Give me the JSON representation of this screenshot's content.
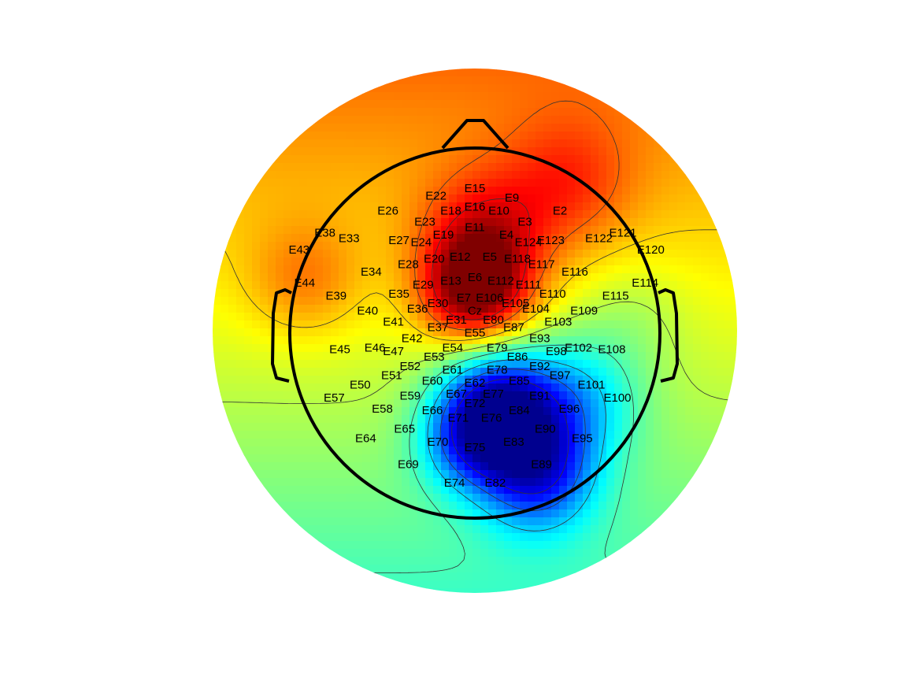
{
  "chart_data": {
    "type": "heatmap",
    "subtype": "topographic-scalp-map",
    "title": "",
    "colormap": "jet",
    "colormap_stops": [
      "#00008f",
      "#0000ff",
      "#00ffff",
      "#ffff00",
      "#ff0000",
      "#800000"
    ],
    "contours": true,
    "head_outline": true,
    "electrodes": [
      {
        "label": "E15",
        "x": 0.0,
        "y": 0.78
      },
      {
        "label": "E22",
        "x": -0.21,
        "y": 0.74
      },
      {
        "label": "E9",
        "x": 0.2,
        "y": 0.73
      },
      {
        "label": "E16",
        "x": 0.0,
        "y": 0.68
      },
      {
        "label": "E18",
        "x": -0.13,
        "y": 0.66
      },
      {
        "label": "E10",
        "x": 0.13,
        "y": 0.66
      },
      {
        "label": "E26",
        "x": -0.47,
        "y": 0.66
      },
      {
        "label": "E2",
        "x": 0.46,
        "y": 0.66
      },
      {
        "label": "E23",
        "x": -0.27,
        "y": 0.6
      },
      {
        "label": "E3",
        "x": 0.27,
        "y": 0.6
      },
      {
        "label": "E11",
        "x": 0.0,
        "y": 0.57
      },
      {
        "label": "E38",
        "x": -0.81,
        "y": 0.54
      },
      {
        "label": "E121",
        "x": 0.8,
        "y": 0.54
      },
      {
        "label": "E19",
        "x": -0.17,
        "y": 0.53
      },
      {
        "label": "E4",
        "x": 0.17,
        "y": 0.53
      },
      {
        "label": "E33",
        "x": -0.68,
        "y": 0.51
      },
      {
        "label": "E122",
        "x": 0.67,
        "y": 0.51
      },
      {
        "label": "E27",
        "x": -0.41,
        "y": 0.5
      },
      {
        "label": "E24",
        "x": -0.29,
        "y": 0.49
      },
      {
        "label": "E124",
        "x": 0.29,
        "y": 0.49
      },
      {
        "label": "E123",
        "x": 0.41,
        "y": 0.5
      },
      {
        "label": "E43",
        "x": -0.95,
        "y": 0.45
      },
      {
        "label": "E120",
        "x": 0.95,
        "y": 0.45
      },
      {
        "label": "E12",
        "x": -0.08,
        "y": 0.41
      },
      {
        "label": "E5",
        "x": 0.08,
        "y": 0.41
      },
      {
        "label": "E20",
        "x": -0.22,
        "y": 0.4
      },
      {
        "label": "E118",
        "x": 0.23,
        "y": 0.4
      },
      {
        "label": "E28",
        "x": -0.36,
        "y": 0.37
      },
      {
        "label": "E117",
        "x": 0.36,
        "y": 0.37
      },
      {
        "label": "E34",
        "x": -0.56,
        "y": 0.33
      },
      {
        "label": "E116",
        "x": 0.54,
        "y": 0.33
      },
      {
        "label": "E6",
        "x": 0.0,
        "y": 0.3
      },
      {
        "label": "E13",
        "x": -0.13,
        "y": 0.28
      },
      {
        "label": "E112",
        "x": 0.14,
        "y": 0.28
      },
      {
        "label": "E44",
        "x": -0.92,
        "y": 0.27
      },
      {
        "label": "E114",
        "x": 0.92,
        "y": 0.27
      },
      {
        "label": "E29",
        "x": -0.28,
        "y": 0.26
      },
      {
        "label": "E111",
        "x": 0.29,
        "y": 0.26
      },
      {
        "label": "E39",
        "x": -0.75,
        "y": 0.2
      },
      {
        "label": "E115",
        "x": 0.76,
        "y": 0.2
      },
      {
        "label": "E35",
        "x": -0.41,
        "y": 0.21
      },
      {
        "label": "E110",
        "x": 0.42,
        "y": 0.21
      },
      {
        "label": "E7",
        "x": -0.06,
        "y": 0.19
      },
      {
        "label": "E106",
        "x": 0.08,
        "y": 0.19
      },
      {
        "label": "E30",
        "x": -0.2,
        "y": 0.16
      },
      {
        "label": "E105",
        "x": 0.22,
        "y": 0.16
      },
      {
        "label": "E36",
        "x": -0.31,
        "y": 0.13
      },
      {
        "label": "E104",
        "x": 0.33,
        "y": 0.13
      },
      {
        "label": "E40",
        "x": -0.58,
        "y": 0.12
      },
      {
        "label": "E109",
        "x": 0.59,
        "y": 0.12
      },
      {
        "label": "Cz",
        "x": 0.0,
        "y": 0.12
      },
      {
        "label": "E31",
        "x": -0.1,
        "y": 0.07
      },
      {
        "label": "E80",
        "x": 0.1,
        "y": 0.07
      },
      {
        "label": "E41",
        "x": -0.44,
        "y": 0.06
      },
      {
        "label": "E103",
        "x": 0.45,
        "y": 0.06
      },
      {
        "label": "E37",
        "x": -0.2,
        "y": 0.03
      },
      {
        "label": "E87",
        "x": 0.21,
        "y": 0.03
      },
      {
        "label": "E55",
        "x": 0.0,
        "y": 0.0
      },
      {
        "label": "E42",
        "x": -0.34,
        "y": -0.03
      },
      {
        "label": "E93",
        "x": 0.35,
        "y": -0.03
      },
      {
        "label": "E46",
        "x": -0.54,
        "y": -0.08
      },
      {
        "label": "E54",
        "x": -0.12,
        "y": -0.08
      },
      {
        "label": "E79",
        "x": 0.12,
        "y": -0.08
      },
      {
        "label": "E102",
        "x": 0.56,
        "y": -0.08
      },
      {
        "label": "E45",
        "x": -0.73,
        "y": -0.09
      },
      {
        "label": "E108",
        "x": 0.74,
        "y": -0.09
      },
      {
        "label": "E47",
        "x": -0.44,
        "y": -0.1
      },
      {
        "label": "E98",
        "x": 0.44,
        "y": -0.1
      },
      {
        "label": "E53",
        "x": -0.22,
        "y": -0.13
      },
      {
        "label": "E86",
        "x": 0.23,
        "y": -0.13
      },
      {
        "label": "E52",
        "x": -0.35,
        "y": -0.18
      },
      {
        "label": "E92",
        "x": 0.35,
        "y": -0.18
      },
      {
        "label": "E61",
        "x": -0.12,
        "y": -0.2
      },
      {
        "label": "E78",
        "x": 0.12,
        "y": -0.2
      },
      {
        "label": "E51",
        "x": -0.45,
        "y": -0.23
      },
      {
        "label": "E97",
        "x": 0.46,
        "y": -0.23
      },
      {
        "label": "E60",
        "x": -0.23,
        "y": -0.26
      },
      {
        "label": "E62",
        "x": 0.0,
        "y": -0.27
      },
      {
        "label": "E85",
        "x": 0.24,
        "y": -0.26
      },
      {
        "label": "E50",
        "x": -0.62,
        "y": -0.28
      },
      {
        "label": "E101",
        "x": 0.63,
        "y": -0.28
      },
      {
        "label": "E67",
        "x": -0.1,
        "y": -0.33
      },
      {
        "label": "E77",
        "x": 0.1,
        "y": -0.33
      },
      {
        "label": "E59",
        "x": -0.35,
        "y": -0.34
      },
      {
        "label": "E91",
        "x": 0.35,
        "y": -0.34
      },
      {
        "label": "E57",
        "x": -0.76,
        "y": -0.35
      },
      {
        "label": "E100",
        "x": 0.77,
        "y": -0.35
      },
      {
        "label": "E72",
        "x": 0.0,
        "y": -0.38
      },
      {
        "label": "E58",
        "x": -0.5,
        "y": -0.41
      },
      {
        "label": "E96",
        "x": 0.51,
        "y": -0.41
      },
      {
        "label": "E66",
        "x": -0.23,
        "y": -0.42
      },
      {
        "label": "E84",
        "x": 0.24,
        "y": -0.42
      },
      {
        "label": "E71",
        "x": -0.09,
        "y": -0.46
      },
      {
        "label": "E76",
        "x": 0.09,
        "y": -0.46
      },
      {
        "label": "E65",
        "x": -0.38,
        "y": -0.52
      },
      {
        "label": "E90",
        "x": 0.38,
        "y": -0.52
      },
      {
        "label": "E64",
        "x": -0.59,
        "y": -0.57
      },
      {
        "label": "E95",
        "x": 0.58,
        "y": -0.57
      },
      {
        "label": "E70",
        "x": -0.2,
        "y": -0.59
      },
      {
        "label": "E83",
        "x": 0.21,
        "y": -0.59
      },
      {
        "label": "E75",
        "x": 0.0,
        "y": -0.62
      },
      {
        "label": "E69",
        "x": -0.36,
        "y": -0.71
      },
      {
        "label": "E89",
        "x": 0.36,
        "y": -0.71
      },
      {
        "label": "E74",
        "x": -0.11,
        "y": -0.81
      },
      {
        "label": "E82",
        "x": 0.11,
        "y": -0.81
      }
    ],
    "field_sources": [
      {
        "x": 0.0,
        "y": 0.22,
        "sigma": 0.2,
        "weight": 0.95
      },
      {
        "x": 0.05,
        "y": 0.52,
        "sigma": 0.24,
        "weight": 0.55
      },
      {
        "x": 0.5,
        "y": 0.8,
        "sigma": 0.25,
        "weight": 0.35
      },
      {
        "x": -0.92,
        "y": 0.28,
        "sigma": 0.22,
        "weight": 0.3
      },
      {
        "x": 0.12,
        "y": -0.4,
        "sigma": 0.22,
        "weight": -1.25
      },
      {
        "x": 0.33,
        "y": -0.75,
        "sigma": 0.22,
        "weight": -0.95
      },
      {
        "x": -0.05,
        "y": -0.6,
        "sigma": 0.18,
        "weight": -0.5
      },
      {
        "x": 0.55,
        "y": -0.35,
        "sigma": 0.24,
        "weight": -0.55
      },
      {
        "x": 0.85,
        "y": 0.1,
        "sigma": 0.22,
        "weight": -0.15
      }
    ],
    "field_baseline": 0.3,
    "field_y_gradient": 0.3,
    "field_range": [
      -1.2,
      1.3
    ]
  }
}
